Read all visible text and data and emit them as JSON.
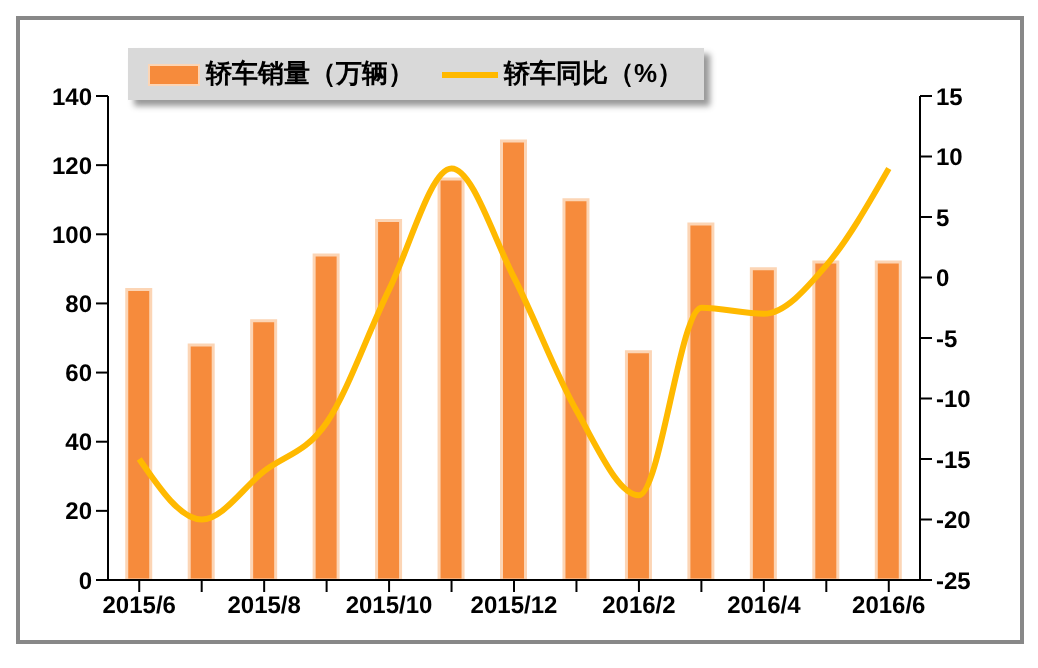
{
  "chart_data": {
    "type": "bar",
    "categories": [
      "2015/6",
      null,
      "2015/8",
      null,
      "2015/10",
      null,
      "2015/12",
      null,
      "2016/2",
      null,
      "2016/4",
      null,
      "2016/6"
    ],
    "series": [
      {
        "name": "轿车销量（万辆）",
        "color": "#f68b3c",
        "values": [
          84,
          68,
          75,
          94,
          104,
          116,
          127,
          110,
          66,
          103,
          90,
          92,
          92
        ]
      },
      {
        "name": "轿车同比（%）",
        "type": "line",
        "axis": "y2",
        "color": "#ffb900",
        "values": [
          -15,
          -20,
          -16,
          -12,
          -1,
          9,
          0,
          -11,
          -18,
          -2.5,
          -3,
          1,
          9
        ]
      }
    ],
    "ylim": [
      0,
      140
    ],
    "yticks": [
      0,
      20,
      40,
      60,
      80,
      100,
      120,
      140
    ],
    "y2lim": [
      -25,
      15
    ],
    "y2ticks": [
      -25,
      -20,
      -15,
      -10,
      -5,
      0,
      5,
      10,
      15
    ],
    "grid": false,
    "legend": "top left",
    "marker": "none"
  }
}
